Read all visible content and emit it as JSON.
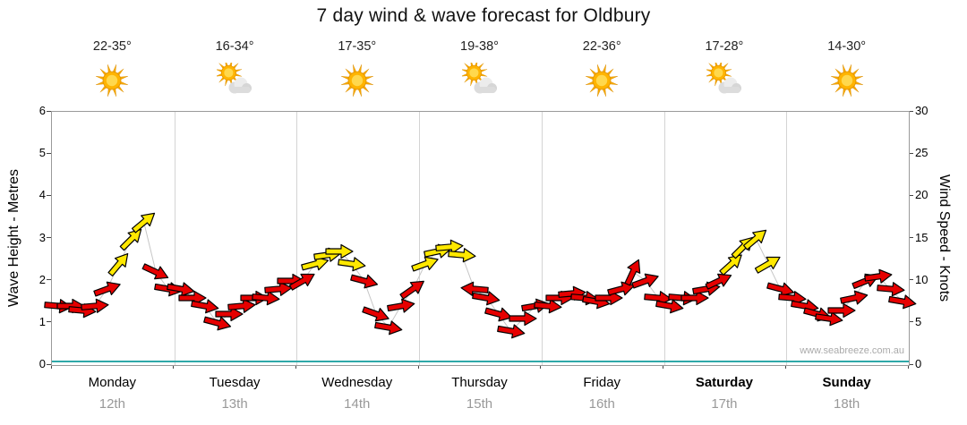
{
  "title": "7 day wind & wave forecast for Oldbury",
  "watermark": "www.seabreeze.com.au",
  "axes": {
    "left_label": "Wave Height - Metres",
    "right_label": "Wind Speed - Knots",
    "left_ticks": [
      0,
      1,
      2,
      3,
      4,
      5,
      6
    ],
    "right_ticks": [
      0,
      5,
      10,
      15,
      20,
      25,
      30
    ]
  },
  "days": [
    {
      "name": "Monday",
      "date": "12th",
      "temp": "22-35°",
      "icon": "sun",
      "bold": false
    },
    {
      "name": "Tuesday",
      "date": "13th",
      "temp": "16-34°",
      "icon": "sun-cloud",
      "bold": false
    },
    {
      "name": "Wednesday",
      "date": "14th",
      "temp": "17-35°",
      "icon": "sun",
      "bold": false
    },
    {
      "name": "Thursday",
      "date": "15th",
      "temp": "19-38°",
      "icon": "sun-cloud",
      "bold": false
    },
    {
      "name": "Friday",
      "date": "16th",
      "temp": "22-36°",
      "icon": "sun",
      "bold": false
    },
    {
      "name": "Saturday",
      "date": "17th",
      "temp": "17-28°",
      "icon": "sun-cloud",
      "bold": true
    },
    {
      "name": "Sunday",
      "date": "18th",
      "temp": "14-30°",
      "icon": "sun",
      "bold": true
    }
  ],
  "chart_data": {
    "type": "wind-arrows",
    "title": "7 day wind & wave forecast for Oldbury",
    "y_left": {
      "label": "Wave Height - Metres",
      "range": [
        0,
        6
      ]
    },
    "y_right": {
      "label": "Wind Speed - Knots",
      "range": [
        0,
        30
      ]
    },
    "wave_height_m": 0.08,
    "colors": {
      "wind_low": "#e60000",
      "wind_high": "#ffe800",
      "wave_line": "#2fa8a8",
      "threshold_knots": 12
    },
    "point_format": "[speed_knots, arrow_rotation_deg_clockwise_0_is_east]",
    "wind": [
      {
        "day": "Monday",
        "points": [
          [
            7,
            5
          ],
          [
            7,
            0
          ],
          [
            6.5,
            5
          ],
          [
            7,
            -5
          ],
          [
            9,
            -20
          ],
          [
            12,
            -50
          ],
          [
            15,
            -45
          ],
          [
            17,
            -40
          ],
          [
            11,
            25
          ],
          [
            9,
            10
          ]
        ]
      },
      {
        "day": "Tuesday",
        "points": [
          [
            9,
            10
          ],
          [
            8,
            0
          ],
          [
            7,
            10
          ],
          [
            5,
            15
          ],
          [
            6,
            0
          ],
          [
            7,
            -5
          ],
          [
            8,
            0
          ],
          [
            8,
            5
          ],
          [
            9,
            -5
          ],
          [
            10,
            0
          ]
        ]
      },
      {
        "day": "Wednesday",
        "points": [
          [
            10,
            -30
          ],
          [
            12,
            -15
          ],
          [
            13,
            -8
          ],
          [
            13.5,
            0
          ],
          [
            12,
            8
          ],
          [
            10,
            15
          ],
          [
            6,
            20
          ],
          [
            4.5,
            10
          ],
          [
            7,
            -10
          ],
          [
            9,
            -35
          ]
        ]
      },
      {
        "day": "Thursday",
        "points": [
          [
            12,
            -20
          ],
          [
            13.5,
            -12
          ],
          [
            14,
            -5
          ],
          [
            13,
            5
          ],
          [
            9,
            185
          ],
          [
            8,
            10
          ],
          [
            6,
            15
          ],
          [
            4,
            10
          ],
          [
            5.5,
            0
          ],
          [
            7,
            -10
          ]
        ]
      },
      {
        "day": "Friday",
        "points": [
          [
            7,
            5
          ],
          [
            8,
            0
          ],
          [
            8.5,
            -5
          ],
          [
            8,
            5
          ],
          [
            7.5,
            10
          ],
          [
            8,
            0
          ],
          [
            9,
            -15
          ],
          [
            11,
            -65
          ],
          [
            10,
            -20
          ],
          [
            8,
            5
          ]
        ]
      },
      {
        "day": "Saturday",
        "points": [
          [
            7,
            10
          ],
          [
            8,
            5
          ],
          [
            8,
            0
          ],
          [
            9,
            -10
          ],
          [
            10,
            -25
          ],
          [
            12,
            -42
          ],
          [
            14,
            -45
          ],
          [
            15,
            -40
          ],
          [
            12,
            -30
          ],
          [
            9,
            15
          ]
        ]
      },
      {
        "day": "Sunday",
        "points": [
          [
            8,
            5
          ],
          [
            7,
            10
          ],
          [
            6,
            15
          ],
          [
            5.5,
            8
          ],
          [
            6.5,
            0
          ],
          [
            8,
            -12
          ],
          [
            10,
            -22
          ],
          [
            10.5,
            -8
          ],
          [
            9,
            5
          ],
          [
            7.5,
            10
          ]
        ]
      }
    ]
  }
}
